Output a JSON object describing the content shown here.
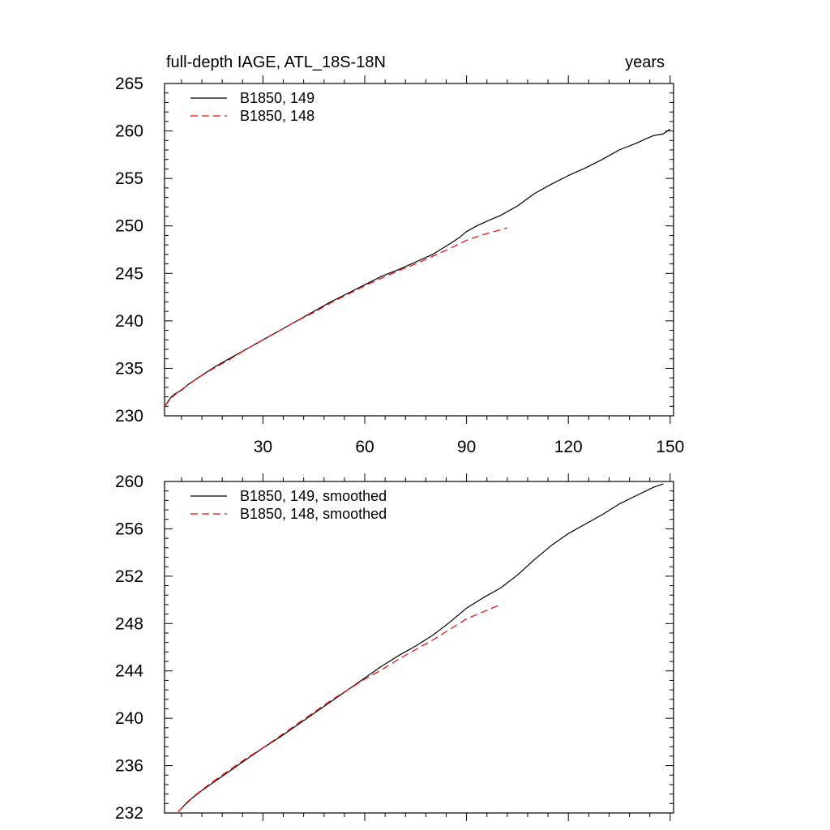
{
  "chart_data": [
    {
      "type": "line",
      "title_left": "full-depth IAGE, ATL_18S-18N",
      "title_right": "years",
      "xlabel": "",
      "ylabel": "",
      "xlim": [
        1,
        151
      ],
      "ylim": [
        230,
        265
      ],
      "xticks": [
        30,
        60,
        90,
        120,
        150
      ],
      "yticks": [
        230,
        235,
        240,
        245,
        250,
        255,
        260,
        265
      ],
      "x_tick_labels_visible": true,
      "grid": false,
      "legend": "top-left",
      "series": [
        {
          "name": "B1850, 149",
          "color": "#000000",
          "dash": "solid",
          "x": [
            1,
            2,
            3,
            4,
            6,
            8,
            10,
            13,
            16,
            20,
            25,
            30,
            35,
            40,
            45,
            50,
            55,
            60,
            65,
            70,
            75,
            80,
            85,
            88,
            90,
            93,
            96,
            100,
            105,
            110,
            115,
            120,
            125,
            130,
            135,
            140,
            143,
            145,
            148,
            150
          ],
          "y": [
            231.0,
            231.5,
            232.0,
            232.3,
            232.7,
            233.3,
            233.8,
            234.5,
            235.2,
            236.0,
            237.0,
            238.0,
            239.0,
            240.0,
            241.0,
            242.0,
            242.9,
            243.8,
            244.7,
            245.4,
            246.2,
            247.0,
            248.1,
            248.8,
            249.4,
            250.0,
            250.5,
            251.1,
            252.1,
            253.4,
            254.4,
            255.3,
            256.1,
            257.0,
            258.0,
            258.7,
            259.2,
            259.5,
            259.7,
            260.2
          ]
        },
        {
          "name": "B1850, 148",
          "color": "#ff0000",
          "dash": "dashed",
          "x": [
            1,
            3,
            5,
            10,
            15,
            20,
            25,
            30,
            35,
            40,
            45,
            50,
            55,
            60,
            65,
            70,
            75,
            80,
            85,
            90,
            95,
            100,
            102
          ],
          "y": [
            231.0,
            231.9,
            232.5,
            233.8,
            234.9,
            235.9,
            237.0,
            238.0,
            239.0,
            240.0,
            240.9,
            241.9,
            242.8,
            243.7,
            244.5,
            245.3,
            246.0,
            246.8,
            247.6,
            248.5,
            249.1,
            249.6,
            249.8
          ]
        }
      ]
    },
    {
      "type": "line",
      "xlabel": "",
      "ylabel": "",
      "xlim": [
        1,
        151
      ],
      "ylim": [
        232,
        260
      ],
      "xticks": [
        30,
        60,
        90,
        120,
        150
      ],
      "yticks": [
        232,
        236,
        240,
        244,
        248,
        252,
        256,
        260
      ],
      "x_tick_labels_visible": false,
      "grid": false,
      "legend": "top-left",
      "series": [
        {
          "name": "B1850, 149, smoothed",
          "color": "#000000",
          "dash": "solid",
          "x": [
            5,
            8,
            12,
            16,
            20,
            25,
            30,
            35,
            40,
            45,
            50,
            55,
            60,
            65,
            70,
            75,
            80,
            85,
            90,
            95,
            100,
            105,
            110,
            115,
            120,
            125,
            130,
            135,
            140,
            145,
            148
          ],
          "y": [
            232.1,
            233.0,
            233.9,
            234.7,
            235.5,
            236.5,
            237.5,
            238.4,
            239.4,
            240.4,
            241.4,
            242.4,
            243.4,
            244.4,
            245.3,
            246.1,
            247.0,
            248.1,
            249.3,
            250.2,
            251.0,
            252.1,
            253.4,
            254.6,
            255.6,
            256.4,
            257.2,
            258.1,
            258.8,
            259.5,
            259.8
          ]
        },
        {
          "name": "B1850, 148, smoothed",
          "color": "#ff0000",
          "dash": "dashed",
          "x": [
            5,
            10,
            15,
            20,
            25,
            30,
            35,
            40,
            45,
            50,
            55,
            60,
            65,
            70,
            75,
            80,
            85,
            90,
            95,
            100
          ],
          "y": [
            232.1,
            233.5,
            234.6,
            235.6,
            236.6,
            237.5,
            238.5,
            239.5,
            240.5,
            241.5,
            242.4,
            243.3,
            244.1,
            245.0,
            245.8,
            246.6,
            247.5,
            248.4,
            249.0,
            249.6
          ]
        }
      ]
    }
  ]
}
